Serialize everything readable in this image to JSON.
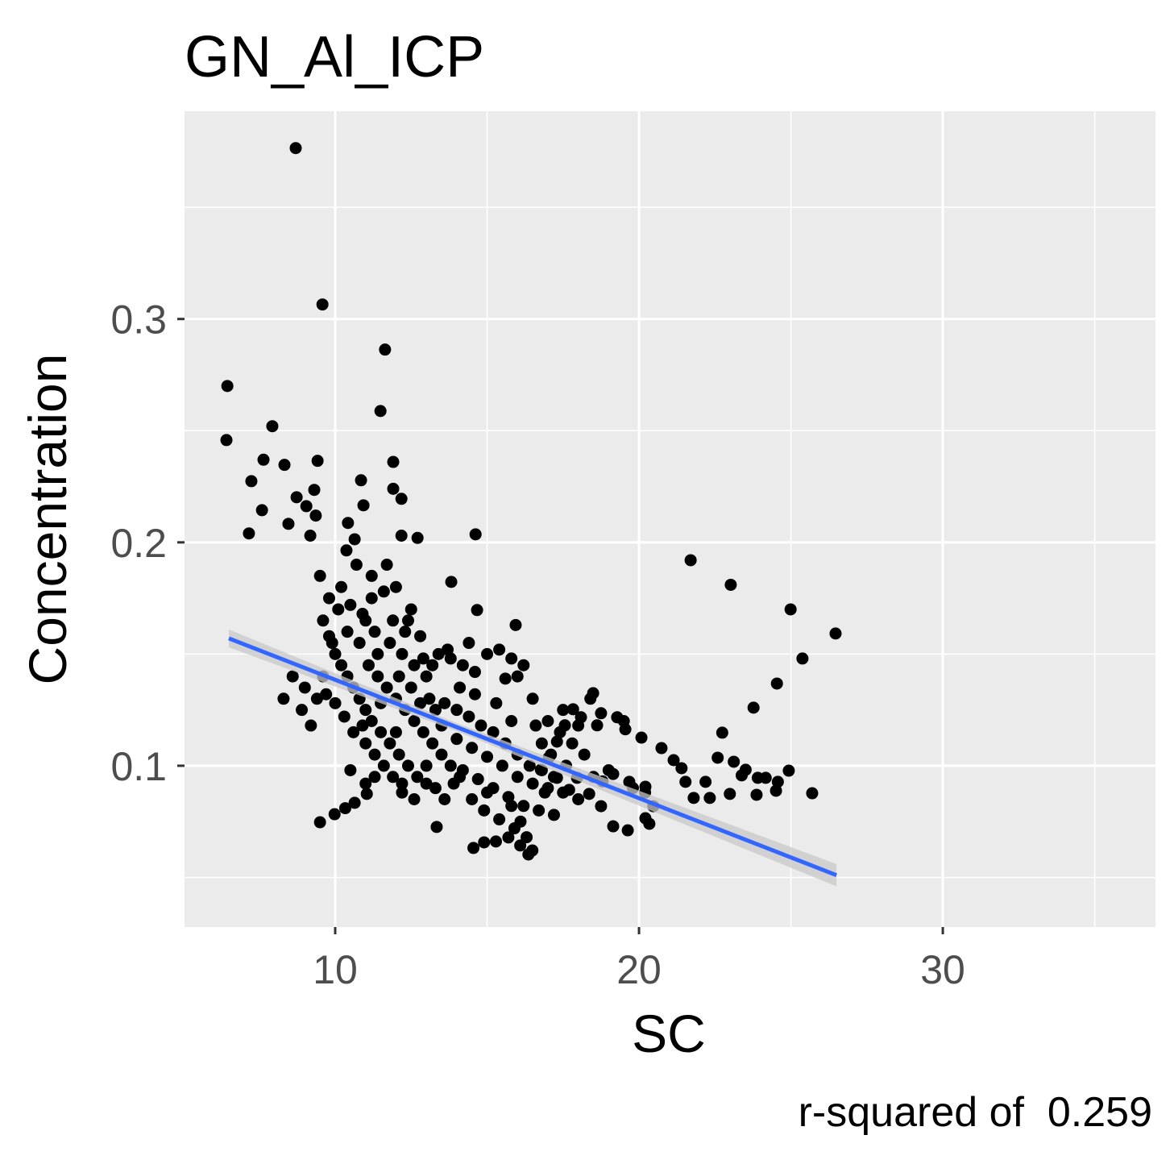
{
  "chart_data": {
    "type": "scatter",
    "title": "GN_Al_ICP",
    "x_label": "SC",
    "y_label": "Concentration",
    "caption": "r-squared of  0.259",
    "color": "#000000",
    "x": [
      8.7,
      9.58,
      11.64,
      6.45,
      6.42,
      11.49,
      7.93,
      7.64,
      8.33,
      9.42,
      11.91,
      7.24,
      10.85,
      9.31,
      11.91,
      8.73,
      10.93,
      7.59,
      9.05,
      12.18,
      8.46,
      10.42,
      9.36,
      7.16,
      12.18,
      12.71,
      14.62,
      9.18,
      10.64,
      10.37,
      21.7,
      23.02,
      13.82,
      24.99,
      26.47,
      25.38,
      14.67,
      24.54,
      23.77,
      22.74,
      25.7,
      24.93,
      24.51,
      23.87,
      15.94,
      13.34,
      9.5,
      9.98,
      10.33,
      10.64,
      11.04,
      14.55,
      14.9,
      15.29,
      15.7,
      16.09,
      16.36,
      16.49,
      19.15,
      19.63,
      20.21,
      20.34,
      20.47,
      19.15,
      19.68,
      20.21,
      20.74,
      21.14,
      21.4,
      21.53,
      21.8,
      22.19,
      22.59,
      23.12,
      23.51,
      23.91,
      24.17,
      24.57,
      22.33,
      22.99,
      23.38,
      18.62,
      19.28,
      19.55,
      20.08,
      18.49,
      18.75,
      18.09,
      17.83,
      17.56,
      17.3,
      17.03,
      17.96,
      18.36,
      18.75,
      17.7,
      17.3,
      16.77,
      9.6,
      9.8,
      10.0,
      10.2,
      10.4,
      10.6,
      10.8,
      11.0,
      10.1,
      10.5,
      10.9,
      11.2,
      11.6,
      12.0,
      12.4,
      12.8,
      11.3,
      11.8,
      12.2,
      12.6,
      13.0,
      13.4,
      13.8,
      14.2,
      14.6,
      15.0,
      15.4,
      15.8,
      16.0,
      11.1,
      11.4,
      11.7,
      12.0,
      12.3,
      12.6,
      12.9,
      13.2,
      13.5,
      13.8,
      14.1,
      11.2,
      11.5,
      11.8,
      12.1,
      12.4,
      12.7,
      13.0,
      13.3,
      11.0,
      11.3,
      11.6,
      11.9,
      12.2,
      10.6,
      10.9,
      10.3,
      10.0,
      9.7,
      9.4,
      9.0,
      8.6,
      8.3,
      8.9,
      9.2,
      9.6,
      12.5,
      13.1,
      13.6,
      14.0,
      14.4,
      14.8,
      15.2,
      15.6,
      16.0,
      16.4,
      16.8,
      17.2,
      13.5,
      14.0,
      14.5,
      15.0,
      15.5,
      16.0,
      16.5,
      17.0,
      17.5,
      18.0,
      14.2,
      14.7,
      15.2,
      15.7,
      16.2,
      16.7,
      17.2,
      14.9,
      15.4,
      15.9,
      16.3,
      16.1,
      15.0,
      13.9,
      13.0,
      12.0,
      11.5,
      12.8,
      13.3,
      16.5,
      17.0,
      17.4,
      17.8,
      18.2,
      17.6,
      18.5,
      19.0,
      16.8,
      15.8,
      15.3,
      14.6,
      14.1,
      16.2,
      17.5,
      18.0,
      18.4,
      19.5,
      12.1,
      10.8,
      11.4,
      12.3,
      13.7,
      12.9,
      11.9,
      11.0,
      10.4,
      9.9,
      11.7,
      11.2,
      10.7,
      10.2,
      9.5,
      9.8,
      12.5,
      13.2,
      14.4,
      15.6,
      16.6,
      17.1,
      18.8,
      19.8,
      20.2,
      10.5,
      11.3,
      12.6,
      13.6,
      14.5,
      15.8,
      16.9,
      11.0,
      12.2
    ],
    "values": [
      0.3765,
      0.3065,
      0.2863,
      0.27,
      0.2458,
      0.2588,
      0.252,
      0.237,
      0.2347,
      0.2365,
      0.236,
      0.2274,
      0.2278,
      0.2235,
      0.224,
      0.2202,
      0.2166,
      0.2144,
      0.2162,
      0.2195,
      0.2083,
      0.2087,
      0.212,
      0.204,
      0.203,
      0.202,
      0.2036,
      0.203,
      0.2014,
      0.1964,
      0.192,
      0.181,
      0.1823,
      0.17,
      0.1592,
      0.148,
      0.1697,
      0.1368,
      0.126,
      0.1148,
      0.0877,
      0.0978,
      0.0888,
      0.087,
      0.163,
      0.0726,
      0.0747,
      0.0783,
      0.081,
      0.0834,
      0.0874,
      0.0632,
      0.0657,
      0.0661,
      0.0679,
      0.0643,
      0.0603,
      0.0621,
      0.0729,
      0.0711,
      0.0765,
      0.074,
      0.0819,
      0.0963,
      0.0928,
      0.0906,
      0.1079,
      0.1025,
      0.0989,
      0.0928,
      0.0856,
      0.0928,
      0.1036,
      0.1018,
      0.0982,
      0.0946,
      0.0946,
      0.0928,
      0.0856,
      0.0874,
      0.0957,
      0.1181,
      0.1217,
      0.1163,
      0.1126,
      0.1325,
      0.1235,
      0.1217,
      0.1253,
      0.1181,
      0.1108,
      0.1036,
      0.0946,
      0.0874,
      0.0819,
      0.0892,
      0.0946,
      0.0982,
      0.165,
      0.158,
      0.15,
      0.145,
      0.14,
      0.135,
      0.13,
      0.125,
      0.17,
      0.172,
      0.168,
      0.175,
      0.178,
      0.18,
      0.165,
      0.158,
      0.16,
      0.155,
      0.15,
      0.145,
      0.14,
      0.15,
      0.148,
      0.145,
      0.142,
      0.15,
      0.152,
      0.148,
      0.14,
      0.145,
      0.14,
      0.135,
      0.13,
      0.125,
      0.12,
      0.115,
      0.11,
      0.105,
      0.1,
      0.095,
      0.12,
      0.115,
      0.11,
      0.105,
      0.1,
      0.095,
      0.092,
      0.09,
      0.11,
      0.105,
      0.1,
      0.095,
      0.092,
      0.115,
      0.118,
      0.122,
      0.128,
      0.132,
      0.13,
      0.135,
      0.14,
      0.13,
      0.125,
      0.118,
      0.14,
      0.135,
      0.13,
      0.128,
      0.125,
      0.122,
      0.118,
      0.115,
      0.11,
      0.105,
      0.1,
      0.098,
      0.095,
      0.118,
      0.112,
      0.108,
      0.104,
      0.1,
      0.095,
      0.092,
      0.09,
      0.088,
      0.085,
      0.098,
      0.094,
      0.09,
      0.086,
      0.082,
      0.08,
      0.078,
      0.08,
      0.076,
      0.072,
      0.068,
      0.075,
      0.088,
      0.092,
      0.1,
      0.115,
      0.128,
      0.128,
      0.125,
      0.13,
      0.12,
      0.115,
      0.11,
      0.105,
      0.1,
      0.095,
      0.098,
      0.11,
      0.12,
      0.128,
      0.132,
      0.135,
      0.145,
      0.125,
      0.118,
      0.13,
      0.12,
      0.14,
      0.155,
      0.15,
      0.16,
      0.152,
      0.148,
      0.165,
      0.165,
      0.16,
      0.155,
      0.19,
      0.185,
      0.19,
      0.18,
      0.185,
      0.175,
      0.17,
      0.145,
      0.155,
      0.139,
      0.118,
      0.105,
      0.093,
      0.09,
      0.088,
      0.098,
      0.095,
      0.085,
      0.085,
      0.085,
      0.082,
      0.088,
      0.092,
      0.088
    ],
    "trend": {
      "color": "#3366ff",
      "band_color": "#c8c8c8",
      "x": [
        6.5,
        14,
        26.5
      ],
      "values": [
        0.157,
        0.1173,
        0.051
      ],
      "lower": [
        0.153,
        0.1155,
        0.046
      ],
      "upper": [
        0.161,
        0.1191,
        0.056
      ]
    },
    "xlim": [
      5.04,
      37.0
    ],
    "ylim": [
      0.0278,
      0.393
    ],
    "xticks": [
      10,
      20,
      30
    ],
    "yticks": [
      0.1,
      0.2,
      0.3
    ],
    "x_minor_breaks": [
      15,
      25,
      35
    ],
    "y_minor_breaks": [
      0.05,
      0.15,
      0.25,
      0.35
    ],
    "grid": true
  }
}
